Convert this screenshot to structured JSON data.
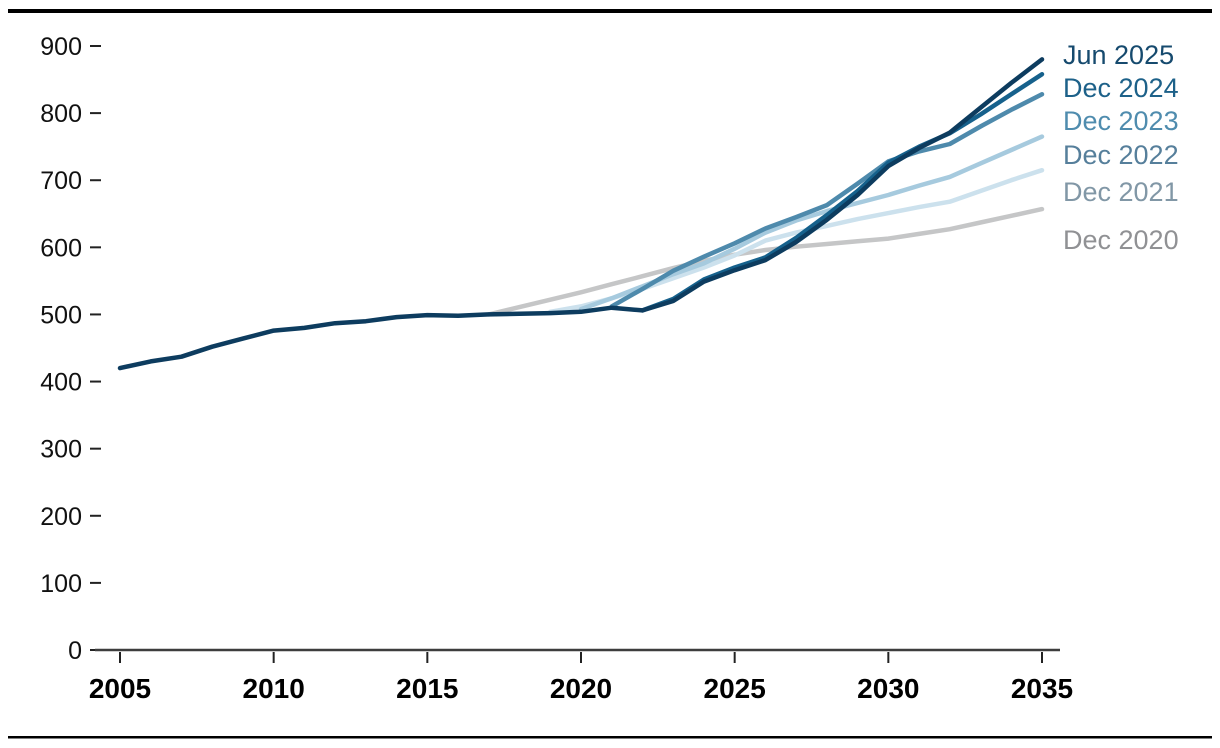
{
  "chart_data": {
    "type": "line",
    "title": "",
    "xlabel": "",
    "ylabel": "",
    "grid": false,
    "xlim": [
      2005,
      2035
    ],
    "ylim": [
      0,
      900
    ],
    "x_ticks": [
      2005,
      2010,
      2015,
      2020,
      2025,
      2030,
      2035
    ],
    "x_tick_labels": [
      "2005",
      "2010",
      "2015",
      "2020",
      "2025",
      "2030",
      "2035"
    ],
    "y_ticks": [
      0,
      100,
      200,
      300,
      400,
      500,
      600,
      700,
      800,
      900
    ],
    "y_tick_labels": [
      "0",
      "100",
      "200",
      "300",
      "400",
      "500",
      "600",
      "700",
      "800",
      "900"
    ],
    "legend_position": "right-of-line-ends",
    "series": [
      {
        "name": "Jun 2025",
        "line_color": "#0d3c5f",
        "label_color": "#164a6e",
        "label_y": 55,
        "start_year": 2005,
        "values": [
          420,
          430,
          437,
          452,
          464,
          476,
          480,
          487,
          490,
          496,
          499,
          498,
          500,
          501,
          502,
          504,
          510,
          506,
          520,
          549,
          566,
          581,
          608,
          641,
          678,
          721,
          748,
          771,
          808,
          845,
          880
        ]
      },
      {
        "name": "Dec 2024",
        "line_color": "#16618c",
        "label_color": "#1d6189",
        "label_y": 88,
        "start_year": 2022,
        "values": [
          506,
          523,
          552,
          570,
          585,
          614,
          648,
          684,
          726,
          750,
          770,
          798,
          828,
          858
        ]
      },
      {
        "name": "Dec 2023",
        "line_color": "#4e8aac",
        "label_color": "#4f8cae",
        "label_y": 121,
        "start_year": 2021,
        "values": [
          512,
          538,
          565,
          586,
          606,
          628,
          645,
          663,
          695,
          728,
          743,
          754,
          780,
          805,
          828
        ]
      },
      {
        "name": "Dec 2022",
        "line_color": "#a6cade",
        "label_color": "#567f9b",
        "label_y": 155,
        "start_year": 2020,
        "values": [
          508,
          524,
          542,
          560,
          576,
          598,
          622,
          640,
          654,
          666,
          678,
          692,
          705,
          725,
          745,
          765
        ]
      },
      {
        "name": "Dec 2021",
        "line_color": "#cce1ed",
        "label_color": "#8197a6",
        "label_y": 192,
        "start_year": 2019,
        "values": [
          504,
          512,
          524,
          538,
          554,
          570,
          588,
          610,
          622,
          632,
          642,
          651,
          660,
          668,
          684,
          700,
          715
        ]
      },
      {
        "name": "Dec 2020",
        "line_color": "#c5c6c7",
        "label_color": "#909194",
        "label_y": 240,
        "start_year": 2017,
        "values": [
          500,
          511,
          522,
          533,
          545,
          557,
          569,
          580,
          589,
          596,
          601,
          605,
          609,
          613,
          620,
          627,
          637,
          647,
          657
        ]
      }
    ]
  },
  "colors": {
    "background": "#ffffff",
    "frame_rule": "#000000",
    "axis_line": "#3d3d3d",
    "tick_mark": "#222222",
    "y_tick_label": "#111111",
    "x_tick_label": "#000000"
  }
}
